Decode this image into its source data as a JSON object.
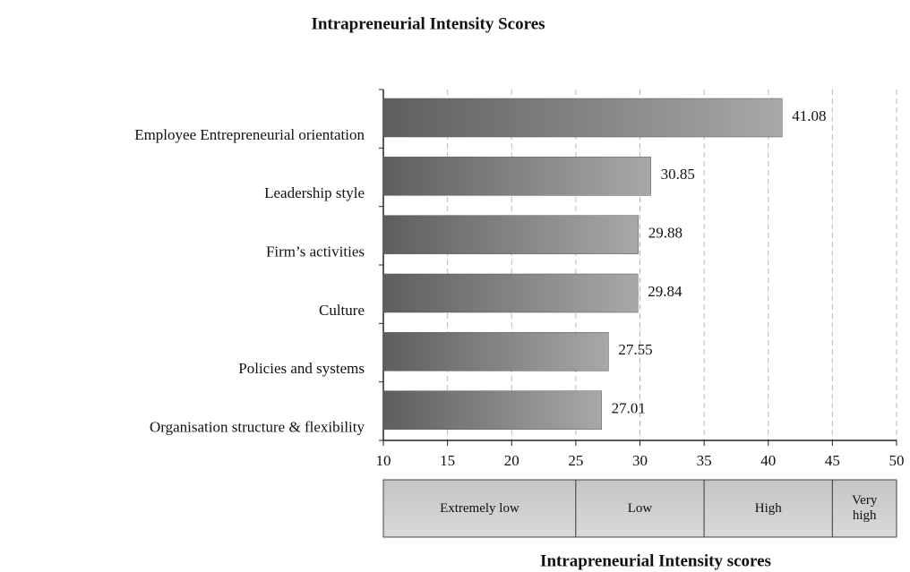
{
  "chart_data": {
    "type": "barh",
    "title": "Intrapreneurial Intensity Scores",
    "xlabel": "Intrapreneurial Intensity scores",
    "categories": [
      "Employee Entrepreneurial orientation",
      "Leadership style",
      "Firm’s activities",
      "Culture",
      "Policies and systems",
      "Organisation structure & flexibility"
    ],
    "values": [
      41.08,
      30.85,
      29.88,
      29.84,
      27.55,
      27.01
    ],
    "xlim": [
      10,
      50
    ],
    "xticks": [
      10,
      15,
      20,
      25,
      30,
      35,
      40,
      45,
      50
    ],
    "grid": true,
    "color": [
      "#5e5e5e",
      "#a8a8a8"
    ],
    "bands": [
      {
        "label": "Extremely low",
        "from": 10,
        "to": 25
      },
      {
        "label": "Low",
        "from": 25,
        "to": 35
      },
      {
        "label": "High",
        "from": 35,
        "to": 45
      },
      {
        "label": "Very high",
        "from": 45,
        "to": 50
      }
    ]
  }
}
